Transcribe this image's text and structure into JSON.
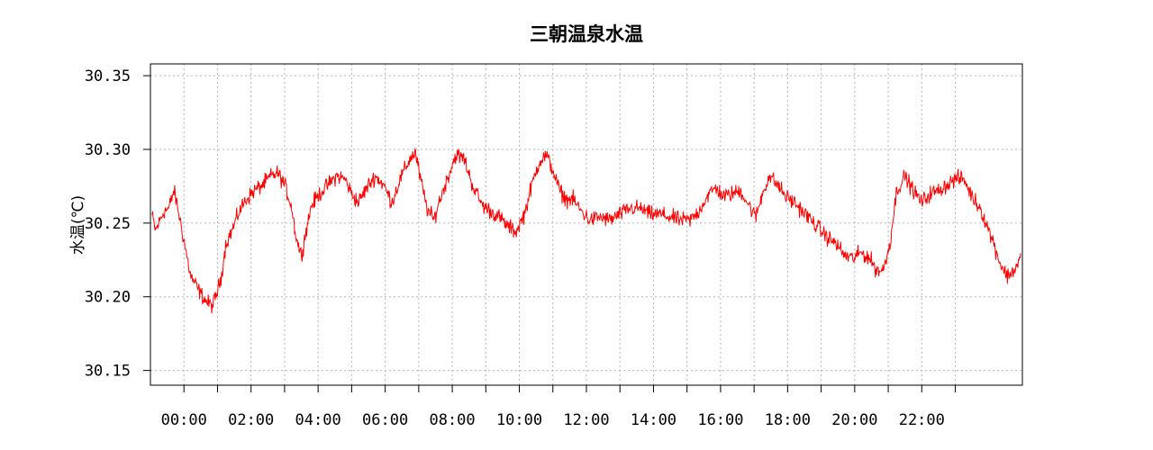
{
  "chart_data": {
    "type": "line",
    "title": "三朝温泉水温",
    "xlabel": "",
    "ylabel": "水温(℃)",
    "xlim": [
      -1,
      25
    ],
    "ylim": [
      30.14,
      30.358
    ],
    "x_ticks": [
      "00:00",
      "02:00",
      "04:00",
      "06:00",
      "08:00",
      "10:00",
      "12:00",
      "14:00",
      "16:00",
      "18:00",
      "20:00",
      "22:00"
    ],
    "y_ticks": [
      "30.15",
      "30.20",
      "30.25",
      "30.30",
      "30.35"
    ],
    "grid": true,
    "colors": {
      "series": "#ff0000",
      "grid": "#b4b4b4",
      "frame": "#000000"
    },
    "series": [
      {
        "x": [
          -0.95,
          -0.85,
          -0.75,
          -0.6,
          -0.45,
          -0.3,
          -0.2,
          -0.1,
          0.05,
          0.2,
          0.3,
          0.5,
          0.7,
          0.85,
          0.95,
          1.1,
          1.25,
          1.45,
          1.65,
          1.85,
          2.1,
          2.35,
          2.6,
          2.8,
          3.0,
          3.2,
          3.35,
          3.5,
          3.65,
          3.8,
          4.05,
          4.3,
          4.55,
          4.8,
          5.0,
          5.2,
          5.45,
          5.7,
          5.95,
          6.2,
          6.45,
          6.75,
          6.9,
          7.05,
          7.25,
          7.45,
          7.6,
          7.85,
          8.1,
          8.35,
          8.6,
          8.9,
          9.15,
          9.4,
          9.65,
          9.9,
          10.15,
          10.4,
          10.6,
          10.8,
          11.0,
          11.2,
          11.4,
          11.6,
          11.85,
          12.1,
          12.4,
          12.7,
          13.0,
          13.3,
          13.6,
          13.9,
          14.2,
          14.5,
          14.8,
          15.1,
          15.35,
          15.6,
          15.85,
          16.1,
          16.35,
          16.6,
          16.85,
          17.05,
          17.25,
          17.45,
          17.7,
          17.95,
          18.2,
          18.45,
          18.7,
          18.95,
          19.2,
          19.45,
          19.7,
          19.95,
          20.2,
          20.45,
          20.65,
          20.85,
          21.05,
          21.25,
          21.5,
          21.75,
          22.0,
          22.25,
          22.5,
          22.75,
          23.0,
          23.25,
          23.5,
          23.75,
          23.95,
          24.15,
          24.35,
          24.55,
          24.75,
          24.95
        ],
        "values": [
          30.255,
          30.245,
          30.25,
          30.258,
          30.26,
          30.272,
          30.262,
          30.25,
          30.232,
          30.214,
          30.21,
          30.202,
          30.196,
          30.194,
          30.2,
          30.212,
          30.236,
          30.246,
          30.258,
          30.266,
          30.272,
          30.276,
          30.282,
          30.284,
          30.276,
          30.262,
          30.24,
          30.228,
          30.246,
          30.262,
          30.27,
          30.276,
          30.282,
          30.28,
          30.27,
          30.264,
          30.274,
          30.282,
          30.276,
          30.264,
          30.28,
          30.294,
          30.298,
          30.28,
          30.26,
          30.252,
          30.264,
          30.28,
          30.296,
          30.294,
          30.276,
          30.262,
          30.258,
          30.254,
          30.248,
          30.244,
          30.256,
          30.278,
          30.292,
          30.296,
          30.286,
          30.272,
          30.266,
          30.266,
          30.258,
          30.252,
          30.254,
          30.252,
          30.256,
          30.26,
          30.26,
          30.256,
          30.256,
          30.254,
          30.252,
          30.252,
          30.258,
          30.268,
          30.274,
          30.268,
          30.27,
          30.272,
          30.262,
          30.254,
          30.27,
          30.282,
          30.276,
          30.268,
          30.264,
          30.258,
          30.252,
          30.246,
          30.24,
          30.236,
          30.228,
          30.226,
          30.23,
          30.226,
          30.218,
          30.218,
          30.236,
          30.272,
          30.282,
          30.272,
          30.264,
          30.27,
          30.272,
          30.276,
          30.28,
          30.28,
          30.268,
          30.26,
          30.248,
          30.236,
          30.222,
          30.214,
          30.218,
          30.226
        ]
      }
    ]
  }
}
